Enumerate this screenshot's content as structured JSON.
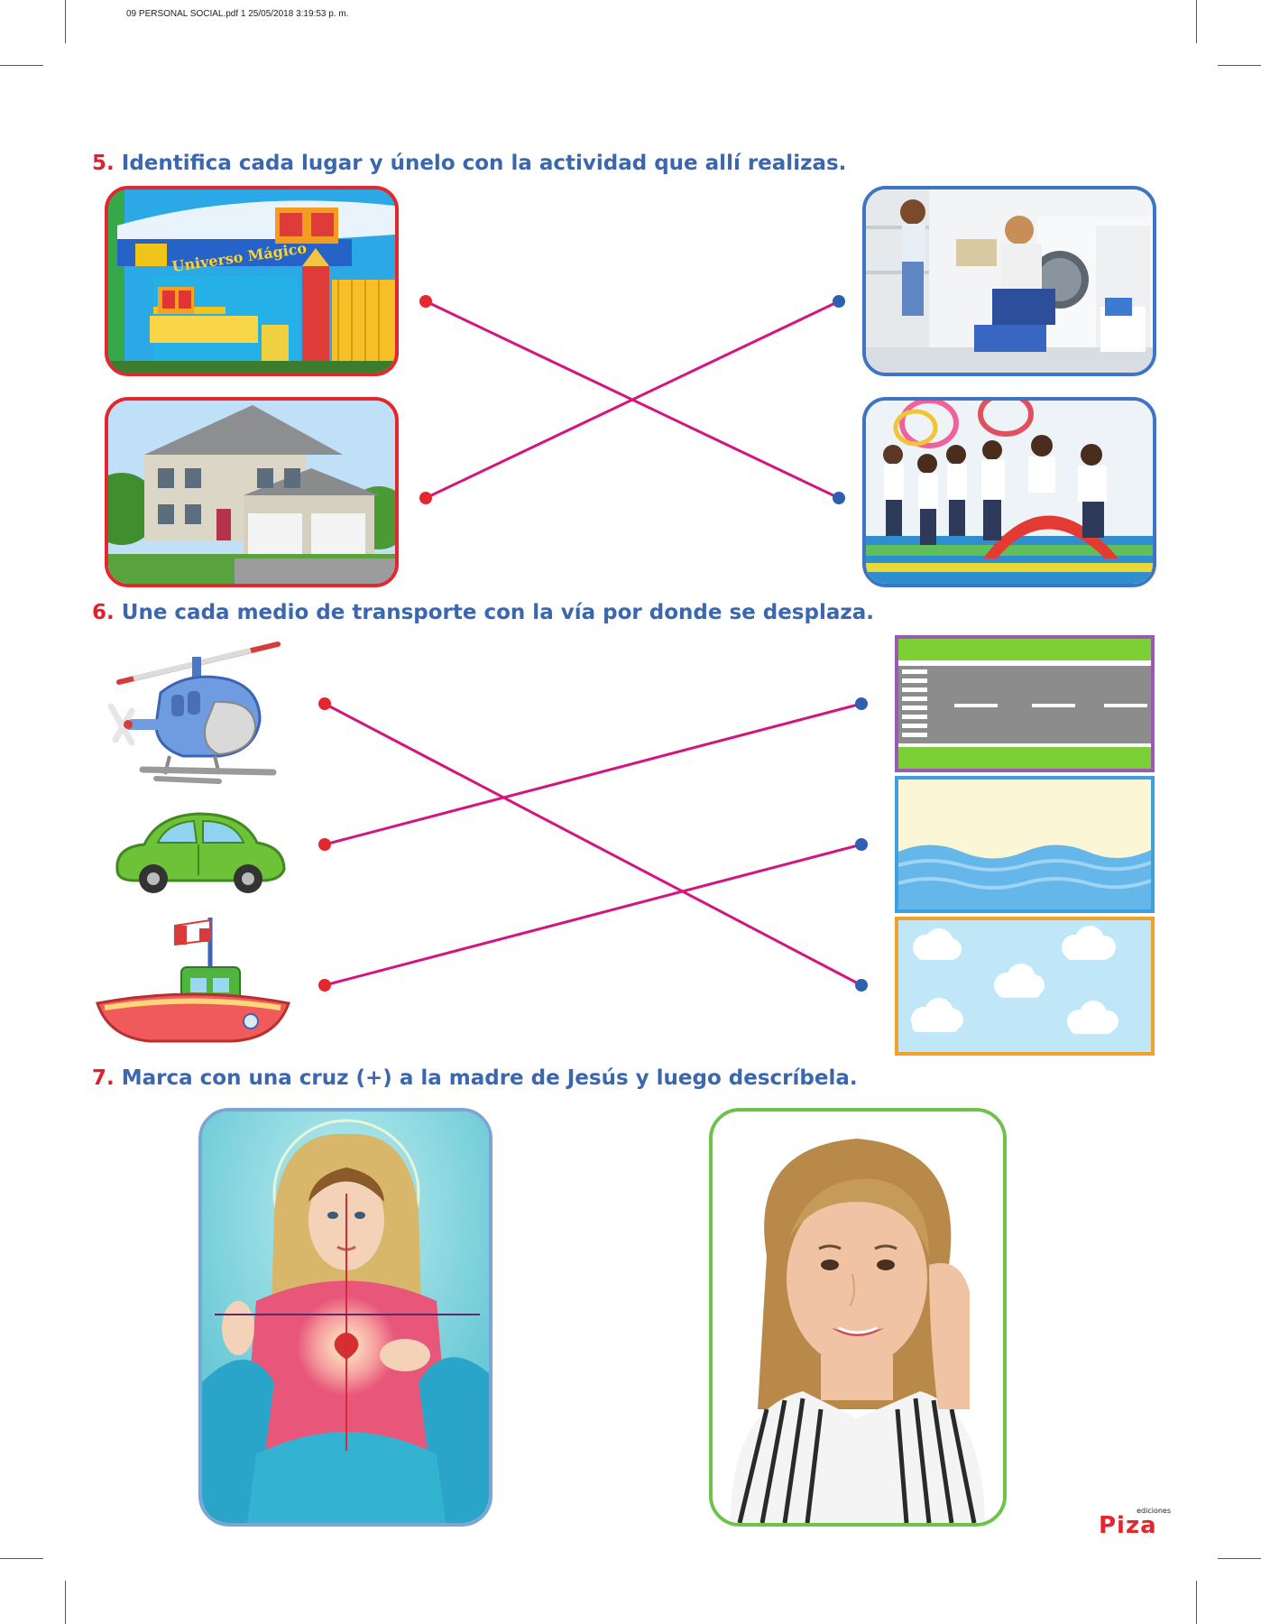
{
  "header": {
    "file_info": "09 PERSONAL SOCIAL.pdf   1   25/05/2018   3:19:53 p. m."
  },
  "q5": {
    "number": "5.",
    "text": "Identifica cada lugar y únelo con la actividad que allí realizas.",
    "sign_text": "Universo Mágico"
  },
  "q6": {
    "number": "6.",
    "text": "Une cada medio de transporte con la vía por donde se desplaza."
  },
  "q7": {
    "number": "7.",
    "text": "Marca con una cruz (+) a la madre de Jesús y luego descríbela."
  },
  "logo": {
    "small": "ediciones",
    "brand": "Piza"
  },
  "colors": {
    "title_blue": "#3a67b0",
    "number_red": "#e0202a",
    "line_magenta": "#d4147f",
    "dot_red": "#e5262e",
    "dot_blue": "#2f5fb0"
  },
  "icons": [
    "helicopter-icon",
    "car-icon",
    "boat-icon",
    "road-icon",
    "sea-icon",
    "sky-icon",
    "cross-mark-icon"
  ]
}
